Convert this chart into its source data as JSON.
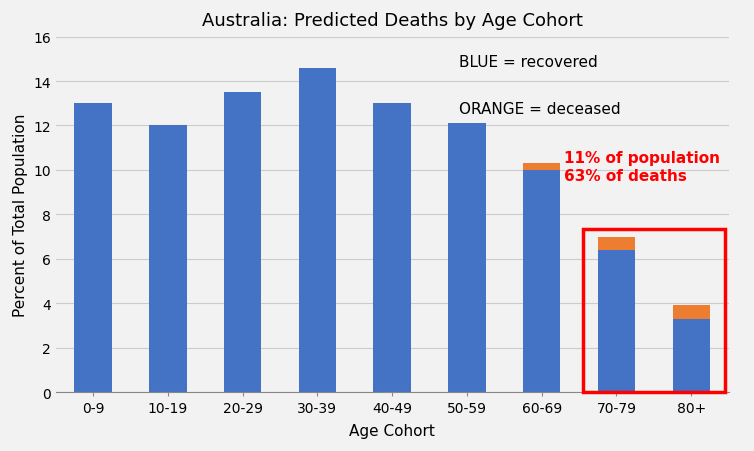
{
  "title": "Australia: Predicted Deaths by Age Cohort",
  "xlabel": "Age Cohort",
  "ylabel": "Percent of Total Population",
  "categories": [
    "0-9",
    "10-19",
    "20-29",
    "30-39",
    "40-49",
    "50-59",
    "60-69",
    "70-79",
    "80+"
  ],
  "blue_values": [
    13.0,
    12.0,
    13.5,
    14.6,
    13.0,
    12.1,
    10.0,
    6.4,
    3.3
  ],
  "orange_values": [
    0.0,
    0.0,
    0.0,
    0.0,
    0.0,
    0.0,
    0.3,
    0.6,
    0.6
  ],
  "blue_color": "#4472C4",
  "orange_color": "#ED7D31",
  "ylim": [
    0,
    16
  ],
  "yticks": [
    0,
    2,
    4,
    6,
    8,
    10,
    12,
    14,
    16
  ],
  "bg_color": "#F2F2F2",
  "plot_bg_color": "#F2F2F2",
  "grid_color": "#CCCCCC",
  "title_fontsize": 13,
  "axis_label_fontsize": 11,
  "tick_fontsize": 10,
  "legend_text_blue": "BLUE = recovered",
  "legend_text_orange": "ORANGE = deceased",
  "annotation_text": "11% of population\n63% of deaths",
  "annotation_color": "#FF0000",
  "box_color": "#FF0000",
  "bar_width": 0.5
}
